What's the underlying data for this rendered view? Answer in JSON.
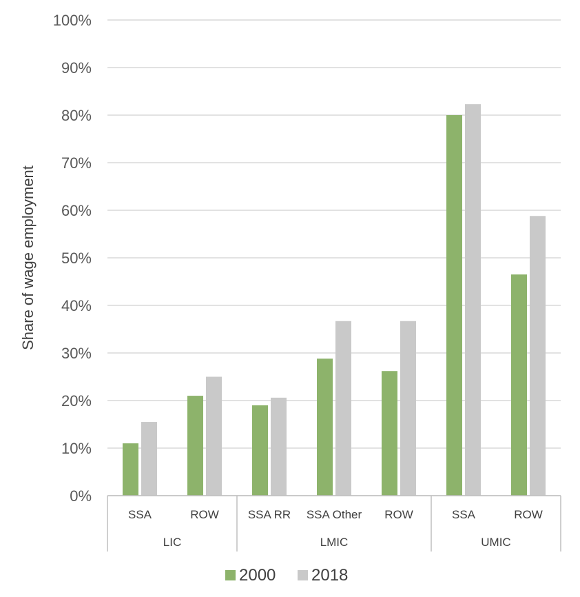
{
  "chart_data": {
    "type": "bar",
    "ylabel": "Share of wage employment",
    "ylim": [
      0,
      100
    ],
    "yticks": [
      "0%",
      "10%",
      "20%",
      "30%",
      "40%",
      "50%",
      "60%",
      "70%",
      "80%",
      "90%",
      "100%"
    ],
    "groups": [
      {
        "label": "LIC",
        "categories": [
          "SSA",
          "ROW"
        ]
      },
      {
        "label": "LMIC",
        "categories": [
          "SSA RR",
          "SSA Other",
          "ROW"
        ]
      },
      {
        "label": "UMIC",
        "categories": [
          "SSA",
          "ROW"
        ]
      }
    ],
    "series": [
      {
        "name": "2000",
        "color": "#8db36b",
        "values": [
          11.0,
          21.0,
          19.0,
          28.8,
          26.2,
          80.0,
          46.5
        ]
      },
      {
        "name": "2018",
        "color": "#c9c9c9",
        "values": [
          15.5,
          25.0,
          20.6,
          36.7,
          36.7,
          82.3,
          58.8
        ]
      }
    ],
    "grid": true,
    "legend": "bottom"
  }
}
